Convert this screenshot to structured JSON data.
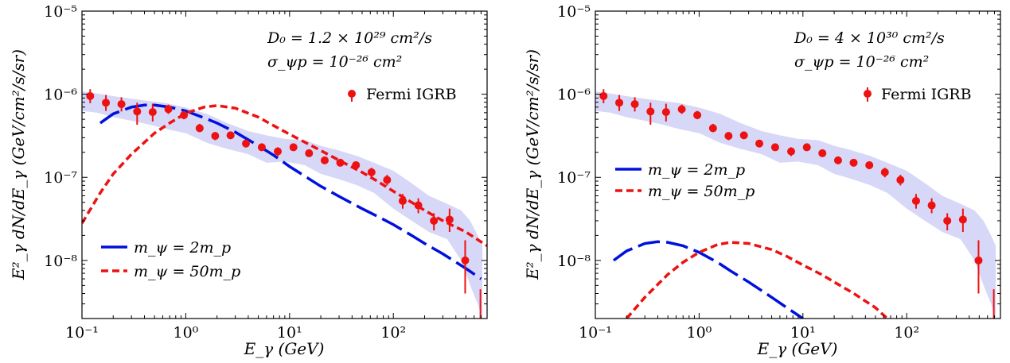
{
  "chart_data": [
    {
      "type": "line",
      "xlabel": "E_γ (GeV)",
      "ylabel": "E²_γ dN/dE_γ (GeV/cm²/s/sr)",
      "xscale": "log",
      "yscale": "log",
      "xlim": [
        0.1,
        800
      ],
      "ylim": [
        2e-09,
        1e-05
      ],
      "grid": false,
      "x_ticks": [
        {
          "value": 0.1,
          "label": "10⁻¹"
        },
        {
          "value": 1,
          "label": "10⁰"
        },
        {
          "value": 10,
          "label": "10¹"
        },
        {
          "value": 100,
          "label": "10²"
        }
      ],
      "y_ticks": [
        {
          "value": 1e-08,
          "label": "10⁻⁸"
        },
        {
          "value": 1e-07,
          "label": "10⁻⁷"
        },
        {
          "value": 1e-06,
          "label": "10⁻⁶"
        },
        {
          "value": 1e-05,
          "label": "10⁻⁵"
        }
      ],
      "annotations": [
        "D₀ = 1.2 × 10²⁹ cm²/s",
        "σ_ψp = 10⁻²⁶ cm²"
      ],
      "legend_dm": {
        "position": "lower-left",
        "entries": [
          "m_ψ = 2m_p",
          "m_ψ = 50m_p"
        ]
      },
      "legend_data": {
        "position": "upper-right",
        "entry": "Fermi IGRB"
      },
      "colors": {
        "data": "#ee1111",
        "band": "#c9c9f5",
        "dm2": "#0010dd",
        "dm50": "#ee1111"
      },
      "band": {
        "x": [
          0.1,
          0.14,
          0.2,
          0.3,
          0.45,
          0.65,
          1.0,
          1.6,
          2.5,
          4,
          6,
          9,
          14,
          20,
          30,
          45,
          65,
          100,
          150,
          220,
          330,
          450,
          550,
          650,
          720
        ],
        "low": [
          6.3e-07,
          6e-07,
          5.3e-07,
          4.8e-07,
          4.3e-07,
          3.8e-07,
          3.4e-07,
          2.6e-07,
          2.2e-07,
          1.9e-07,
          1.5e-07,
          1.55e-07,
          1.4e-07,
          1.1e-07,
          9.5e-08,
          8e-08,
          6.5e-08,
          4.2e-08,
          3e-08,
          2.2e-08,
          1.8e-08,
          1e-08,
          5e-09,
          3e-09,
          2e-09
        ],
        "high": [
          1.08e-06,
          1.02e-06,
          9.5e-07,
          8.8e-07,
          8.3e-07,
          7.8e-07,
          6.9e-07,
          5.8e-07,
          4.5e-07,
          3.6e-07,
          3.2e-07,
          2.9e-07,
          2.8e-07,
          2.4e-07,
          2.1e-07,
          1.8e-07,
          1.5e-07,
          1.2e-07,
          8.5e-08,
          6e-08,
          4.8e-08,
          4e-08,
          3e-08,
          2e-08,
          1.5e-08
        ]
      },
      "points": {
        "x": [
          0.12,
          0.17,
          0.24,
          0.34,
          0.48,
          0.68,
          0.96,
          1.36,
          1.92,
          2.7,
          3.8,
          5.4,
          7.7,
          10.9,
          15.4,
          21.8,
          30.8,
          43.6,
          61.6,
          87,
          123,
          174,
          246,
          348,
          492
        ],
        "y": [
          9.5e-07,
          7.9e-07,
          7.6e-07,
          6.2e-07,
          6.1e-07,
          6.6e-07,
          5.6e-07,
          3.9e-07,
          3.15e-07,
          3.2e-07,
          2.55e-07,
          2.3e-07,
          2.05e-07,
          2.3e-07,
          1.95e-07,
          1.6e-07,
          1.5e-07,
          1.4e-07,
          1.15e-07,
          9.3e-08,
          5.2e-08,
          4.6e-08,
          3e-08,
          3.1e-08,
          1e-08
        ],
        "y_low": [
          7.8e-07,
          6.3e-07,
          6.2e-07,
          4.3e-07,
          4.7e-07,
          5.8e-07,
          5e-07,
          3.5e-07,
          2.8e-07,
          2.9e-07,
          2.3e-07,
          2.1e-07,
          1.8e-07,
          2.1e-07,
          1.8e-07,
          1.45e-07,
          1.35e-07,
          1.25e-07,
          1e-07,
          8e-08,
          4.2e-08,
          3.7e-08,
          2.3e-08,
          2.2e-08,
          4e-09
        ],
        "y_high": [
          1.15e-06,
          9.8e-07,
          9.2e-07,
          7.9e-07,
          7.7e-07,
          7.5e-07,
          6.3e-07,
          4.4e-07,
          3.5e-07,
          3.5e-07,
          2.8e-07,
          2.5e-07,
          2.3e-07,
          2.5e-07,
          2.1e-07,
          1.75e-07,
          1.65e-07,
          1.55e-07,
          1.3e-07,
          1.07e-07,
          6.3e-08,
          5.6e-08,
          3.7e-08,
          4.2e-08,
          1.75e-08
        ]
      },
      "extra_errorbar": {
        "x": 690,
        "y_low": 2e-09,
        "y_high": 4.5e-09
      },
      "series": [
        {
          "name": "m_ψ = 2m_p",
          "style": "long-dash",
          "x": [
            0.15,
            0.2,
            0.3,
            0.4,
            0.5,
            0.7,
            1,
            1.5,
            2,
            3,
            5,
            7,
            10,
            15,
            20,
            30,
            50,
            70,
            100,
            150,
            200,
            300,
            500,
            700
          ],
          "y": [
            4.5e-07,
            5.8e-07,
            7e-07,
            7.4e-07,
            7.4e-07,
            7e-07,
            6.3e-07,
            5.2e-07,
            4.5e-07,
            3.5e-07,
            2.4e-07,
            1.85e-07,
            1.35e-07,
            9.8e-08,
            7.8e-08,
            5.9e-08,
            4.2e-08,
            3.4e-08,
            2.7e-08,
            2e-08,
            1.6e-08,
            1.2e-08,
            8e-09,
            6e-09
          ]
        },
        {
          "name": "m_ψ = 50m_p",
          "style": "short-dash",
          "x": [
            0.1,
            0.15,
            0.2,
            0.3,
            0.5,
            0.7,
            1,
            1.5,
            2,
            3,
            5,
            7,
            10,
            20,
            30,
            50,
            70,
            100,
            150,
            200,
            300,
            500,
            800
          ],
          "y": [
            2.8e-08,
            6.5e-08,
            1.1e-07,
            1.9e-07,
            3.4e-07,
            4.5e-07,
            5.9e-07,
            7e-07,
            7.3e-07,
            6.8e-07,
            5.3e-07,
            4.2e-07,
            3.3e-07,
            2.1e-07,
            1.6e-07,
            1.15e-07,
            9e-08,
            6.8e-08,
            5e-08,
            4e-08,
            3e-08,
            2.2e-08,
            1.5e-08
          ]
        }
      ]
    },
    {
      "type": "line",
      "xlabel": "E_γ (GeV)",
      "ylabel": "E²_γ dN/dE_γ (GeV/cm²/s/sr)",
      "xscale": "log",
      "yscale": "log",
      "xlim": [
        0.1,
        800
      ],
      "ylim": [
        2e-09,
        1e-05
      ],
      "grid": false,
      "x_ticks": [
        {
          "value": 0.1,
          "label": "10⁻¹"
        },
        {
          "value": 1,
          "label": "10⁰"
        },
        {
          "value": 10,
          "label": "10¹"
        },
        {
          "value": 100,
          "label": "10²"
        }
      ],
      "y_ticks": [
        {
          "value": 1e-08,
          "label": "10⁻⁸"
        },
        {
          "value": 1e-07,
          "label": "10⁻⁷"
        },
        {
          "value": 1e-06,
          "label": "10⁻⁶"
        },
        {
          "value": 1e-05,
          "label": "10⁻⁵"
        }
      ],
      "annotations": [
        "D₀ = 4 × 10³⁰ cm²/s",
        "σ_ψp = 10⁻²⁶ cm²"
      ],
      "legend_dm": {
        "position": "center-left",
        "entries": [
          "m_ψ = 2m_p",
          "m_ψ = 50m_p"
        ]
      },
      "legend_data": {
        "position": "upper-right",
        "entry": "Fermi IGRB"
      },
      "colors": {
        "data": "#ee1111",
        "band": "#c9c9f5",
        "dm2": "#0010dd",
        "dm50": "#ee1111"
      },
      "band": {
        "x": [
          0.1,
          0.14,
          0.2,
          0.3,
          0.45,
          0.65,
          1.0,
          1.6,
          2.5,
          4,
          6,
          9,
          14,
          20,
          30,
          45,
          65,
          100,
          150,
          220,
          330,
          450,
          550,
          650,
          720
        ],
        "low": [
          6.3e-07,
          6e-07,
          5.3e-07,
          4.8e-07,
          4.3e-07,
          3.8e-07,
          3.4e-07,
          2.6e-07,
          2.2e-07,
          1.9e-07,
          1.5e-07,
          1.55e-07,
          1.4e-07,
          1.1e-07,
          9.5e-08,
          8e-08,
          6.5e-08,
          4.2e-08,
          3e-08,
          2.2e-08,
          1.8e-08,
          1e-08,
          5e-09,
          3e-09,
          2e-09
        ],
        "high": [
          1.08e-06,
          1.02e-06,
          9.5e-07,
          8.8e-07,
          8.3e-07,
          7.8e-07,
          6.9e-07,
          5.8e-07,
          4.5e-07,
          3.6e-07,
          3.2e-07,
          2.9e-07,
          2.8e-07,
          2.4e-07,
          2.1e-07,
          1.8e-07,
          1.5e-07,
          1.2e-07,
          8.5e-08,
          6e-08,
          4.8e-08,
          4e-08,
          3e-08,
          2e-08,
          1.5e-08
        ]
      },
      "points": {
        "x": [
          0.12,
          0.17,
          0.24,
          0.34,
          0.48,
          0.68,
          0.96,
          1.36,
          1.92,
          2.7,
          3.8,
          5.4,
          7.7,
          10.9,
          15.4,
          21.8,
          30.8,
          43.6,
          61.6,
          87,
          123,
          174,
          246,
          348,
          492
        ],
        "y": [
          9.5e-07,
          7.9e-07,
          7.6e-07,
          6.2e-07,
          6.1e-07,
          6.6e-07,
          5.6e-07,
          3.9e-07,
          3.15e-07,
          3.2e-07,
          2.55e-07,
          2.3e-07,
          2.05e-07,
          2.3e-07,
          1.95e-07,
          1.6e-07,
          1.5e-07,
          1.4e-07,
          1.15e-07,
          9.3e-08,
          5.2e-08,
          4.6e-08,
          3e-08,
          3.1e-08,
          1e-08
        ],
        "y_low": [
          7.8e-07,
          6.3e-07,
          6.2e-07,
          4.3e-07,
          4.7e-07,
          5.8e-07,
          5e-07,
          3.5e-07,
          2.8e-07,
          2.9e-07,
          2.3e-07,
          2.1e-07,
          1.8e-07,
          2.1e-07,
          1.8e-07,
          1.45e-07,
          1.35e-07,
          1.25e-07,
          1e-07,
          8e-08,
          4.2e-08,
          3.7e-08,
          2.3e-08,
          2.2e-08,
          4e-09
        ],
        "y_high": [
          1.15e-06,
          9.8e-07,
          9.2e-07,
          7.9e-07,
          7.7e-07,
          7.5e-07,
          6.3e-07,
          4.4e-07,
          3.5e-07,
          3.5e-07,
          2.8e-07,
          2.5e-07,
          2.3e-07,
          2.5e-07,
          2.1e-07,
          1.75e-07,
          1.65e-07,
          1.55e-07,
          1.3e-07,
          1.07e-07,
          6.3e-08,
          5.6e-08,
          3.7e-08,
          4.2e-08,
          1.75e-08
        ]
      },
      "extra_errorbar": {
        "x": 690,
        "y_low": 2e-09,
        "y_high": 4.5e-09
      },
      "series": [
        {
          "name": "m_ψ = 2m_p",
          "style": "long-dash",
          "x": [
            0.15,
            0.2,
            0.3,
            0.4,
            0.5,
            0.7,
            1,
            1.5,
            2,
            3,
            5,
            7,
            10
          ],
          "y": [
            1e-08,
            1.3e-08,
            1.6e-08,
            1.68e-08,
            1.65e-08,
            1.5e-08,
            1.25e-08,
            9.5e-09,
            7.5e-09,
            5.5e-09,
            3.6e-09,
            2.7e-09,
            2e-09
          ]
        },
        {
          "name": "m_ψ = 50m_p",
          "style": "short-dash",
          "x": [
            0.2,
            0.3,
            0.5,
            0.7,
            1,
            1.5,
            2,
            3,
            5,
            7,
            10,
            15,
            20,
            30,
            50,
            65
          ],
          "y": [
            2e-09,
            3.6e-09,
            6.8e-09,
            9.5e-09,
            1.25e-08,
            1.55e-08,
            1.65e-08,
            1.6e-08,
            1.35e-08,
            1.12e-08,
            8.8e-09,
            6.8e-09,
            5.5e-09,
            4.1e-09,
            2.7e-09,
            2e-09
          ]
        }
      ]
    }
  ]
}
